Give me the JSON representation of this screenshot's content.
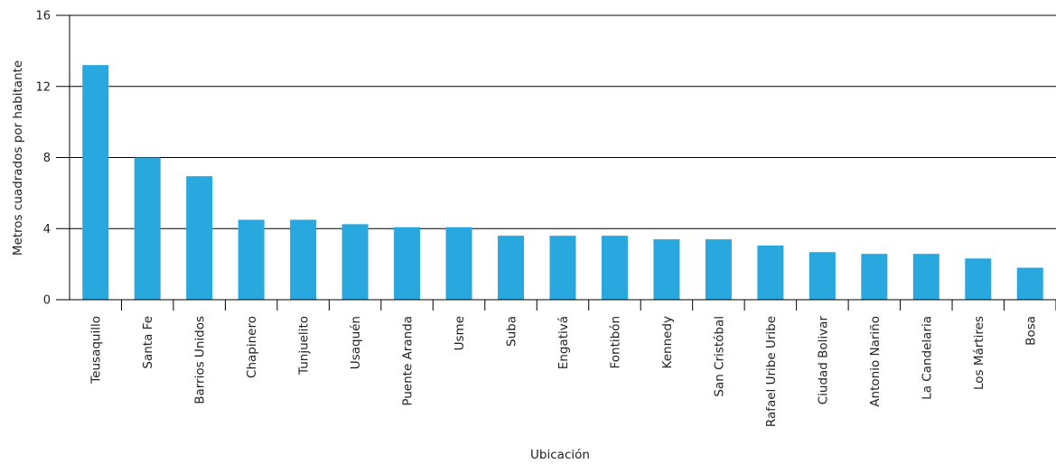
{
  "chart_data": {
    "type": "bar",
    "title": "",
    "xlabel": "Ubicación",
    "ylabel": "Metros cuadrados por habitante",
    "ylim": [
      0,
      16
    ],
    "yticks": [
      0,
      4,
      8,
      12,
      16
    ],
    "grid": true,
    "bar_color": "#29A8E0",
    "categories": [
      "Teusaquillo",
      "Santa Fe",
      "Barrios Unidos",
      "Chapinero",
      "Tunjuelito",
      "Usaquén",
      "Puente Aranda",
      "Usme",
      "Suba",
      "Engativá",
      "Fontibón",
      "Kennedy",
      "San Cristóbal",
      "Rafael Uribe Uribe",
      "Ciudad Bolivar",
      "Antonio Nariño",
      "La Candelaria",
      "Los Mártires",
      "Bosa"
    ],
    "values": [
      13.2,
      8.0,
      6.95,
      4.5,
      4.5,
      4.25,
      4.08,
      4.08,
      3.6,
      3.6,
      3.6,
      3.4,
      3.4,
      3.05,
      2.68,
      2.58,
      2.58,
      2.32,
      1.8
    ]
  }
}
